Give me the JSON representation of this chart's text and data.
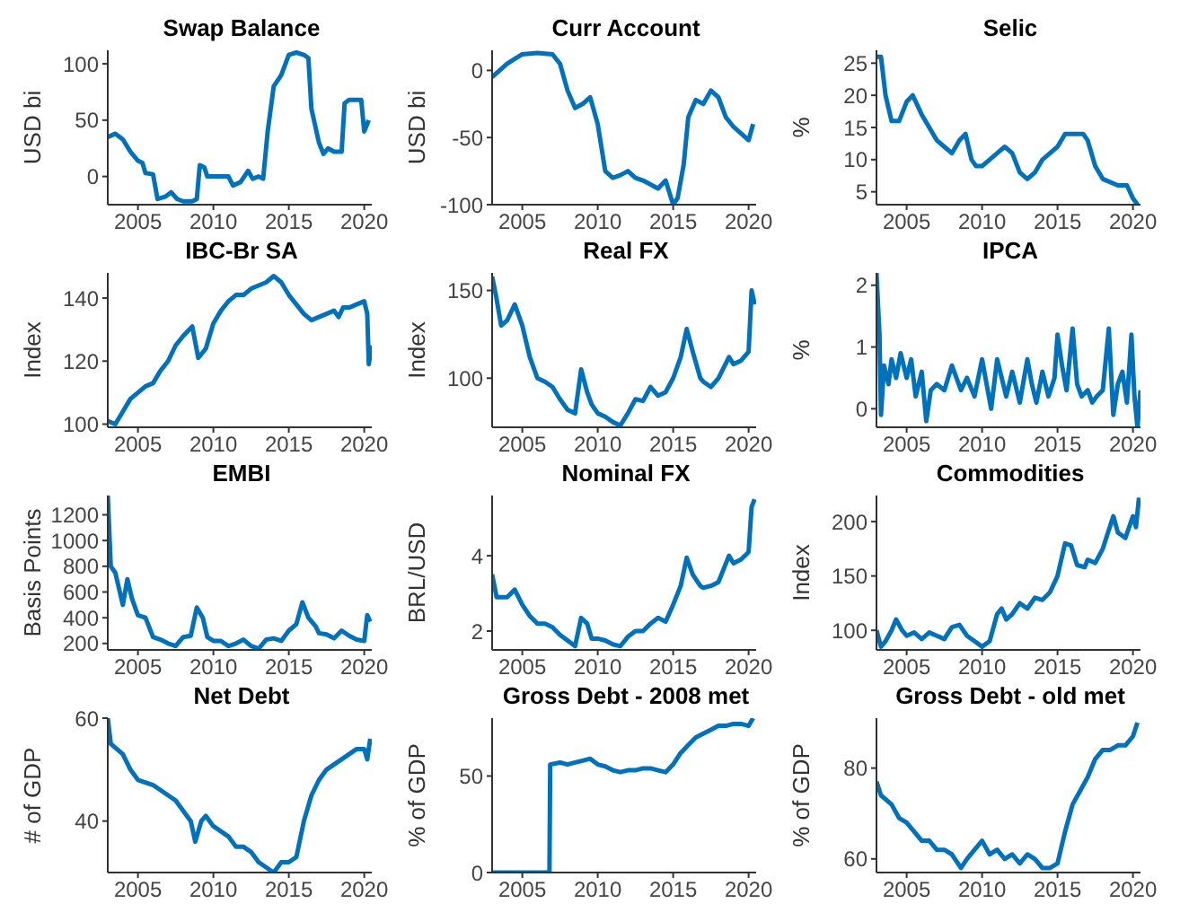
{
  "chart_data": [
    {
      "type": "line",
      "title": "Swap Balance",
      "ylabel": "USD bi",
      "color": "#0072bd",
      "xlim": [
        2003,
        2020.5
      ],
      "xticks": [
        2005,
        2010,
        2015,
        2020
      ],
      "ylim": [
        -25,
        112
      ],
      "yticks": [
        0,
        50,
        100
      ],
      "x": [
        2003,
        2003.5,
        2004,
        2004.5,
        2005,
        2005.3,
        2005.5,
        2006,
        2006.3,
        2006.8,
        2007.2,
        2007.6,
        2008,
        2008.6,
        2008.9,
        2009.1,
        2009.4,
        2009.6,
        2010,
        2011,
        2011.3,
        2011.8,
        2012.3,
        2012.6,
        2013,
        2013.3,
        2013.6,
        2014,
        2014.5,
        2015,
        2015.5,
        2016,
        2016.3,
        2016.5,
        2017,
        2017.3,
        2017.6,
        2018,
        2018.5,
        2018.7,
        2019,
        2019.8,
        2020,
        2020.3
      ],
      "values": [
        35,
        38,
        33,
        22,
        14,
        12,
        3,
        2,
        -20,
        -18,
        -14,
        -20,
        -22,
        -22,
        -20,
        10,
        8,
        0,
        0,
        0,
        -8,
        -5,
        5,
        -2,
        0,
        -2,
        40,
        80,
        90,
        108,
        110,
        108,
        105,
        60,
        30,
        20,
        25,
        22,
        22,
        65,
        68,
        68,
        40,
        50
      ]
    },
    {
      "type": "line",
      "title": "Curr Account",
      "ylabel": "USD bi",
      "color": "#0072bd",
      "xlim": [
        2003,
        2020.5
      ],
      "xticks": [
        2005,
        2010,
        2015,
        2020
      ],
      "ylim": [
        -100,
        15
      ],
      "yticks": [
        -100,
        -50,
        0
      ],
      "x": [
        2003,
        2004,
        2005,
        2006,
        2007,
        2007.5,
        2008,
        2008.5,
        2009,
        2009.5,
        2010,
        2010.5,
        2011,
        2011.5,
        2012,
        2012.5,
        2013,
        2013.5,
        2014,
        2014.5,
        2015,
        2015.3,
        2015.7,
        2016,
        2016.5,
        2017,
        2017.5,
        2018,
        2018.5,
        2019,
        2019.5,
        2020,
        2020.3
      ],
      "values": [
        -5,
        5,
        12,
        13,
        12,
        5,
        -15,
        -28,
        -25,
        -20,
        -40,
        -75,
        -80,
        -78,
        -75,
        -80,
        -82,
        -85,
        -88,
        -82,
        -100,
        -95,
        -70,
        -35,
        -22,
        -25,
        -15,
        -20,
        -35,
        -42,
        -47,
        -52,
        -40
      ]
    },
    {
      "type": "line",
      "title": "Selic",
      "ylabel": "%",
      "color": "#0072bd",
      "xlim": [
        2003,
        2020.5
      ],
      "xticks": [
        2005,
        2010,
        2015,
        2020
      ],
      "ylim": [
        3,
        27
      ],
      "yticks": [
        5,
        10,
        15,
        20,
        25
      ],
      "x": [
        2003,
        2003.3,
        2003.6,
        2004,
        2004.5,
        2005,
        2005.4,
        2006,
        2006.5,
        2007,
        2007.5,
        2008,
        2008.5,
        2008.9,
        2009.3,
        2009.6,
        2010,
        2010.5,
        2011,
        2011.5,
        2012,
        2012.5,
        2013,
        2013.5,
        2014,
        2014.5,
        2015,
        2015.5,
        2016,
        2016.7,
        2017,
        2017.5,
        2018,
        2019,
        2019.6,
        2020,
        2020.3
      ],
      "values": [
        26,
        26,
        20,
        16,
        16,
        19,
        20,
        17,
        15,
        13,
        12,
        11,
        13,
        14,
        10,
        9,
        9,
        10,
        11,
        12,
        11,
        8,
        7,
        8,
        10,
        11,
        12,
        14,
        14,
        14,
        13,
        9,
        7,
        6,
        6,
        4,
        3
      ]
    },
    {
      "type": "line",
      "title": "IBC-Br SA",
      "ylabel": "Index",
      "color": "#0072bd",
      "xlim": [
        2003,
        2020.5
      ],
      "xticks": [
        2005,
        2010,
        2015,
        2020
      ],
      "ylim": [
        99,
        148
      ],
      "yticks": [
        100,
        120,
        140
      ],
      "x": [
        2003,
        2003.5,
        2004,
        2004.5,
        2005,
        2005.5,
        2006,
        2006.5,
        2007,
        2007.5,
        2008,
        2008.6,
        2009,
        2009.5,
        2010,
        2010.5,
        2011,
        2011.5,
        2012,
        2012.5,
        2013,
        2013.5,
        2014,
        2014.5,
        2015,
        2015.5,
        2016,
        2016.5,
        2017,
        2017.5,
        2018,
        2018.3,
        2018.6,
        2019,
        2019.5,
        2020,
        2020.2,
        2020.3,
        2020.5
      ],
      "values": [
        101,
        100,
        104,
        108,
        110,
        112,
        113,
        117,
        120,
        125,
        128,
        131,
        121,
        124,
        132,
        136,
        139,
        141,
        141,
        143,
        144,
        145,
        147,
        145,
        141,
        138,
        135,
        133,
        134,
        135,
        136,
        134,
        137,
        137,
        138,
        139,
        135,
        119,
        125
      ]
    },
    {
      "type": "line",
      "title": "Real FX",
      "ylabel": "Index",
      "color": "#0072bd",
      "xlim": [
        2003,
        2020.5
      ],
      "xticks": [
        2005,
        2010,
        2015,
        2020
      ],
      "ylim": [
        72,
        160
      ],
      "yticks": [
        100,
        150
      ],
      "x": [
        2003,
        2003.3,
        2003.6,
        2004,
        2004.5,
        2005,
        2005.5,
        2006,
        2006.5,
        2007,
        2007.5,
        2008,
        2008.5,
        2008.9,
        2009.3,
        2009.6,
        2010,
        2010.5,
        2011,
        2011.5,
        2012,
        2012.5,
        2013,
        2013.5,
        2014,
        2014.5,
        2015,
        2015.5,
        2015.9,
        2016.3,
        2016.8,
        2017,
        2017.5,
        2018,
        2018.7,
        2019,
        2019.5,
        2020,
        2020.2,
        2020.4
      ],
      "values": [
        158,
        145,
        130,
        133,
        142,
        130,
        112,
        100,
        98,
        95,
        88,
        82,
        80,
        105,
        92,
        85,
        80,
        78,
        75,
        73,
        80,
        88,
        87,
        95,
        90,
        92,
        100,
        112,
        128,
        115,
        100,
        98,
        95,
        100,
        112,
        108,
        110,
        115,
        150,
        142
      ]
    },
    {
      "type": "line",
      "title": "IPCA",
      "ylabel": "%",
      "color": "#0072bd",
      "xlim": [
        2003,
        2020.5
      ],
      "xticks": [
        2005,
        2010,
        2015,
        2020
      ],
      "ylim": [
        -0.3,
        2.2
      ],
      "yticks": [
        0,
        1,
        2
      ],
      "x": [
        2003,
        2003.2,
        2003.3,
        2003.5,
        2003.8,
        2004,
        2004.3,
        2004.6,
        2005,
        2005.3,
        2005.6,
        2006,
        2006.3,
        2006.6,
        2007,
        2007.5,
        2008,
        2008.3,
        2008.6,
        2009,
        2009.5,
        2010,
        2010.3,
        2010.6,
        2011,
        2011.3,
        2011.6,
        2012,
        2012.5,
        2013,
        2013.3,
        2013.6,
        2014,
        2014.4,
        2014.8,
        2015,
        2015.3,
        2015.6,
        2016,
        2016.3,
        2016.6,
        2017,
        2017.3,
        2017.6,
        2018,
        2018.4,
        2018.7,
        2019,
        2019.3,
        2019.6,
        2019.9,
        2020.1,
        2020.3,
        2020.5
      ],
      "values": [
        2.2,
        1.2,
        -0.1,
        0.7,
        0.4,
        0.8,
        0.5,
        0.9,
        0.5,
        0.8,
        0.2,
        0.6,
        -0.2,
        0.3,
        0.4,
        0.3,
        0.7,
        0.5,
        0.3,
        0.5,
        0.2,
        0.8,
        0.4,
        0,
        0.8,
        0.5,
        0.2,
        0.6,
        0.1,
        0.8,
        0.4,
        0.1,
        0.6,
        0.2,
        0.5,
        1.2,
        0.7,
        0.3,
        1.3,
        0.4,
        0.2,
        0.3,
        0.1,
        0.2,
        0.3,
        1.3,
        -0.1,
        0.4,
        0.6,
        0.1,
        1.2,
        0.2,
        -0.3,
        0.3
      ]
    },
    {
      "type": "line",
      "title": "EMBI",
      "ylabel": "Basis Points",
      "color": "#0072bd",
      "xlim": [
        2003,
        2020.5
      ],
      "xticks": [
        2005,
        2010,
        2015,
        2020
      ],
      "ylim": [
        150,
        1350
      ],
      "yticks": [
        200,
        400,
        600,
        800,
        1000,
        1200
      ],
      "x": [
        2003,
        2003.2,
        2003.5,
        2004,
        2004.3,
        2004.6,
        2005,
        2005.5,
        2006,
        2006.5,
        2007,
        2007.5,
        2008,
        2008.5,
        2008.9,
        2009.3,
        2009.6,
        2010,
        2010.5,
        2011,
        2011.5,
        2012,
        2012.5,
        2013,
        2013.5,
        2014,
        2014.5,
        2015,
        2015.5,
        2015.9,
        2016.3,
        2016.8,
        2017,
        2017.5,
        2018,
        2018.5,
        2019,
        2019.5,
        2020,
        2020.2,
        2020.4
      ],
      "values": [
        1350,
        800,
        750,
        500,
        700,
        550,
        420,
        400,
        250,
        230,
        200,
        180,
        250,
        260,
        480,
        400,
        250,
        220,
        220,
        180,
        200,
        230,
        180,
        160,
        230,
        240,
        220,
        300,
        350,
        520,
        400,
        330,
        280,
        270,
        240,
        300,
        260,
        230,
        220,
        420,
        370
      ]
    },
    {
      "type": "line",
      "title": "Nominal FX",
      "ylabel": "BRL/USD",
      "color": "#0072bd",
      "xlim": [
        2003,
        2020.5
      ],
      "xticks": [
        2005,
        2010,
        2015,
        2020
      ],
      "ylim": [
        1.5,
        5.6
      ],
      "yticks": [
        2,
        4
      ],
      "x": [
        2003,
        2003.3,
        2004,
        2004.5,
        2005,
        2005.5,
        2006,
        2006.5,
        2007,
        2007.5,
        2008,
        2008.5,
        2008.9,
        2009.3,
        2009.6,
        2010,
        2010.5,
        2011,
        2011.5,
        2012,
        2012.5,
        2013,
        2013.5,
        2014,
        2014.5,
        2015,
        2015.5,
        2015.9,
        2016.3,
        2016.8,
        2017,
        2017.5,
        2018,
        2018.7,
        2019,
        2019.5,
        2020,
        2020.2,
        2020.4
      ],
      "values": [
        3.5,
        2.9,
        2.9,
        3.1,
        2.7,
        2.4,
        2.2,
        2.2,
        2.1,
        1.9,
        1.75,
        1.6,
        2.35,
        2.2,
        1.8,
        1.8,
        1.75,
        1.65,
        1.6,
        1.85,
        2,
        2,
        2.2,
        2.35,
        2.25,
        2.7,
        3.2,
        3.95,
        3.5,
        3.2,
        3.15,
        3.2,
        3.3,
        4,
        3.8,
        3.9,
        4.1,
        5.3,
        5.5
      ]
    },
    {
      "type": "line",
      "title": "Commodities",
      "ylabel": "Index",
      "color": "#0072bd",
      "xlim": [
        2003,
        2020.5
      ],
      "xticks": [
        2005,
        2010,
        2015,
        2020
      ],
      "ylim": [
        82,
        224
      ],
      "yticks": [
        100,
        150,
        200
      ],
      "x": [
        2003,
        2003.3,
        2003.6,
        2004,
        2004.3,
        2004.7,
        2005,
        2005.5,
        2006,
        2006.5,
        2007,
        2007.5,
        2008,
        2008.5,
        2009,
        2009.5,
        2010,
        2010.5,
        2011,
        2011.3,
        2011.6,
        2012,
        2012.5,
        2013,
        2013.5,
        2014,
        2014.5,
        2015,
        2015.5,
        2015.9,
        2016.3,
        2016.8,
        2017,
        2017.5,
        2018,
        2018.7,
        2019,
        2019.5,
        2020,
        2020.2,
        2020.4
      ],
      "values": [
        100,
        85,
        90,
        100,
        110,
        100,
        95,
        98,
        92,
        98,
        95,
        92,
        103,
        105,
        95,
        90,
        85,
        90,
        115,
        120,
        110,
        115,
        125,
        120,
        130,
        128,
        135,
        150,
        180,
        178,
        160,
        158,
        165,
        162,
        175,
        205,
        190,
        185,
        205,
        195,
        222
      ]
    },
    {
      "type": "line",
      "title": "Net Debt",
      "ylabel": "# of GDP",
      "color": "#0072bd",
      "xlim": [
        2003,
        2020.5
      ],
      "xticks": [
        2005,
        2010,
        2015,
        2020
      ],
      "ylim": [
        30,
        60
      ],
      "yticks": [
        40,
        60
      ],
      "x": [
        2003,
        2003.2,
        2004,
        2004.5,
        2005,
        2006,
        2007,
        2007.5,
        2008,
        2008.5,
        2008.8,
        2009.2,
        2009.5,
        2010,
        2010.5,
        2011,
        2011.5,
        2012,
        2012.5,
        2013,
        2013.5,
        2014,
        2014.5,
        2015,
        2015.5,
        2016,
        2016.5,
        2017,
        2017.5,
        2018,
        2018.5,
        2019,
        2019.5,
        2020,
        2020.2,
        2020.4
      ],
      "values": [
        60,
        55,
        53,
        50,
        48,
        47,
        45,
        44,
        42,
        40,
        36,
        40,
        41,
        39,
        38,
        37,
        35,
        35,
        34,
        32,
        31,
        30,
        32,
        32,
        33,
        40,
        45,
        48,
        50,
        51,
        52,
        53,
        54,
        54,
        52,
        56
      ]
    },
    {
      "type": "line",
      "title": "Gross Debt - 2008 met",
      "ylabel": "% of GDP",
      "color": "#0072bd",
      "xlim": [
        2003,
        2020.5
      ],
      "xticks": [
        2005,
        2010,
        2015,
        2020
      ],
      "ylim": [
        0,
        80
      ],
      "yticks": [
        0,
        50
      ],
      "x": [
        2003,
        2006.8,
        2006.85,
        2007.5,
        2008,
        2008.5,
        2009,
        2009.5,
        2010,
        2010.5,
        2011,
        2011.5,
        2012,
        2012.5,
        2013,
        2013.5,
        2014,
        2014.5,
        2015,
        2015.5,
        2016,
        2016.5,
        2017,
        2017.5,
        2018,
        2018.5,
        2019,
        2019.5,
        2020,
        2020.3
      ],
      "values": [
        0,
        0,
        56,
        57,
        56,
        57,
        58,
        59,
        56,
        55,
        53,
        52,
        53,
        53,
        54,
        54,
        53,
        52,
        56,
        62,
        66,
        70,
        72,
        74,
        76,
        76,
        77,
        77,
        76,
        80
      ]
    },
    {
      "type": "line",
      "title": "Gross Debt - old met",
      "ylabel": "% of GDP",
      "color": "#0072bd",
      "xlim": [
        2003,
        2020.5
      ],
      "xticks": [
        2005,
        2010,
        2015,
        2020
      ],
      "ylim": [
        57,
        91
      ],
      "yticks": [
        60,
        80
      ],
      "x": [
        2003,
        2003.3,
        2004,
        2004.5,
        2005,
        2005.5,
        2006,
        2006.5,
        2007,
        2007.5,
        2008,
        2008.6,
        2009,
        2009.5,
        2010,
        2010.5,
        2011,
        2011.5,
        2012,
        2012.5,
        2013,
        2013.5,
        2014,
        2014.5,
        2015,
        2015.5,
        2016,
        2016.5,
        2017,
        2017.5,
        2018,
        2018.5,
        2019,
        2019.5,
        2020,
        2020.3
      ],
      "values": [
        77,
        74,
        72,
        69,
        68,
        66,
        64,
        64,
        62,
        62,
        61,
        58,
        60,
        62,
        64,
        61,
        62,
        60,
        61,
        59,
        61,
        60,
        58,
        58,
        59,
        66,
        72,
        75,
        78,
        82,
        84,
        84,
        85,
        85,
        87,
        90
      ]
    }
  ]
}
